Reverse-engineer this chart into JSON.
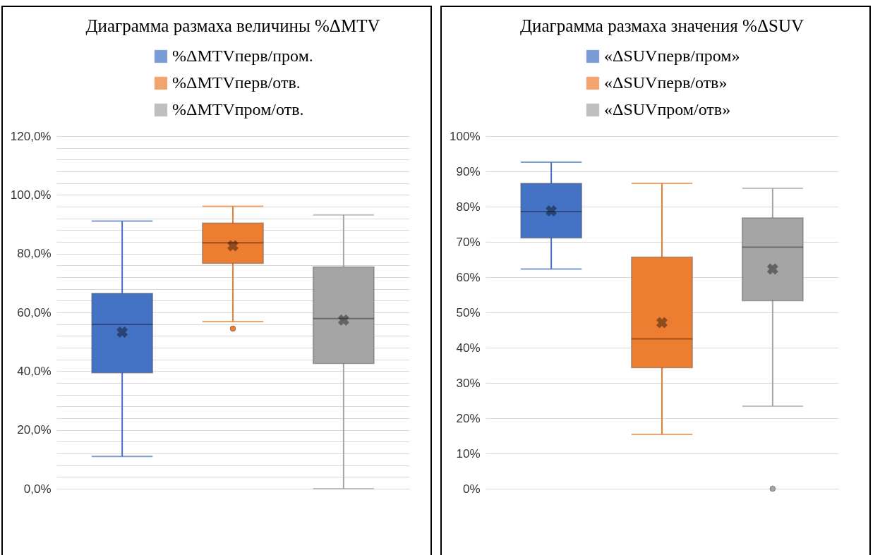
{
  "chart_data": [
    {
      "type": "box",
      "title": "Диаграмма размаха величины %ΔMTV",
      "categories": [
        null
      ],
      "legend": "top",
      "grid": "y",
      "ylim": [
        0,
        120
      ],
      "yticks": [
        {
          "value": 0,
          "label": "0,0%"
        },
        {
          "value": 4,
          "label": null
        },
        {
          "value": 8,
          "label": null
        },
        {
          "value": 12,
          "label": null
        },
        {
          "value": 16,
          "label": null
        },
        {
          "value": 20,
          "label": "20,0%"
        },
        {
          "value": 24,
          "label": null
        },
        {
          "value": 28,
          "label": null
        },
        {
          "value": 32,
          "label": null
        },
        {
          "value": 36,
          "label": null
        },
        {
          "value": 40,
          "label": "40,0%"
        },
        {
          "value": 44,
          "label": null
        },
        {
          "value": 48,
          "label": null
        },
        {
          "value": 52,
          "label": null
        },
        {
          "value": 56,
          "label": null
        },
        {
          "value": 60,
          "label": "60,0%"
        },
        {
          "value": 64,
          "label": null
        },
        {
          "value": 68,
          "label": null
        },
        {
          "value": 72,
          "label": null
        },
        {
          "value": 76,
          "label": null
        },
        {
          "value": 80,
          "label": "80,0%"
        },
        {
          "value": 84,
          "label": null
        },
        {
          "value": 88,
          "label": null
        },
        {
          "value": 92,
          "label": null
        },
        {
          "value": 96,
          "label": null
        },
        {
          "value": 100,
          "label": "100,0%"
        },
        {
          "value": 104,
          "label": null
        },
        {
          "value": 108,
          "label": null
        },
        {
          "value": 112,
          "label": null
        },
        {
          "value": 116,
          "label": null
        },
        {
          "value": 120,
          "label": "120,0%"
        }
      ],
      "series": [
        {
          "name": "%ΔMTVперв/пром.",
          "color": "#4472c4",
          "boxes": [
            {
              "low": 11,
              "q1": 39.4,
              "median": 55.9,
              "q3": 66.5,
              "high": 91.1,
              "mean": 53.3
            }
          ]
        },
        {
          "name": "%ΔMTVперв/отв.",
          "color": "#ed7d31",
          "boxes": [
            {
              "low": 56.9,
              "q1": 76.7,
              "median": 83.7,
              "q3": 90.4,
              "high": 96.1,
              "mean": 82.7,
              "outliers": [
                54.5
              ]
            }
          ]
        },
        {
          "name": "%ΔMTVпром/отв.",
          "color": "#a5a5a5",
          "boxes": [
            {
              "low": 0,
              "q1": 42.6,
              "median": 57.9,
              "q3": 75.5,
              "high": 93.2,
              "mean": 57.4
            }
          ]
        }
      ]
    },
    {
      "type": "box",
      "title": "Диаграмма размаха значения %ΔSUV",
      "categories": [
        null
      ],
      "legend": "top",
      "grid": "y",
      "ylim": [
        0,
        100
      ],
      "yticks": [
        {
          "value": 0,
          "label": "0%"
        },
        {
          "value": 10,
          "label": "10%"
        },
        {
          "value": 20,
          "label": "20%"
        },
        {
          "value": 30,
          "label": "30%"
        },
        {
          "value": 40,
          "label": "40%"
        },
        {
          "value": 50,
          "label": "50%"
        },
        {
          "value": 60,
          "label": "60%"
        },
        {
          "value": 70,
          "label": "70%"
        },
        {
          "value": 80,
          "label": "80%"
        },
        {
          "value": 90,
          "label": "90%"
        },
        {
          "value": 100,
          "label": "100%"
        }
      ],
      "series": [
        {
          "name": "«ΔSUVперв/пром»",
          "color": "#4472c4",
          "boxes": [
            {
              "low": 62.3,
              "q1": 71.1,
              "median": 78.6,
              "q3": 86.6,
              "high": 92.6,
              "mean": 78.8
            }
          ]
        },
        {
          "name": "«ΔSUVперв/отв»",
          "color": "#ed7d31",
          "boxes": [
            {
              "low": 15.4,
              "q1": 34.3,
              "median": 42.5,
              "q3": 65.7,
              "high": 86.6,
              "mean": 47.1
            }
          ]
        },
        {
          "name": "«ΔSUVпром/отв»",
          "color": "#a5a5a5",
          "boxes": [
            {
              "low": 23.4,
              "q1": 53.3,
              "median": 68.5,
              "q3": 76.8,
              "high": 85.2,
              "mean": 62.3,
              "outliers": [
                0
              ]
            }
          ]
        }
      ]
    }
  ]
}
